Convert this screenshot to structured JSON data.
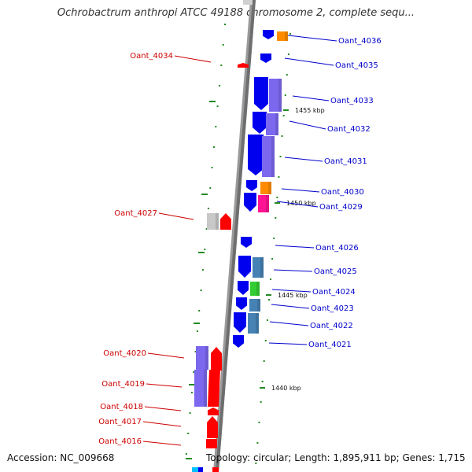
{
  "title": "Ochrobactrum anthropi ATCC 49188 chromosome 2, complete sequ...",
  "footer": {
    "accession": "Accession: NC_009668",
    "topology": "Topology: circular; Length: 1,895,911 bp; Genes: 1,715"
  },
  "colors": {
    "backbone": "#9a9a9a",
    "forward_label": "#0000cc",
    "reverse_label": "#cc0000",
    "tick": "#228b22",
    "blue": "#0000ee",
    "purple": "#7b68ee",
    "orange": "#ff8c00",
    "pink": "#ff1493",
    "red": "#ff0000",
    "grey": "#c8c8c8",
    "steel": "#4682b4",
    "green": "#32cd32"
  },
  "tick_labels": [
    "1455 kbp",
    "1450 kbp",
    "1445 kbp",
    "1440 kbp"
  ],
  "forward_genes": [
    "Oant_4036",
    "Oant_4035",
    "Oant_4033",
    "Oant_4032",
    "Oant_4031",
    "Oant_4030",
    "Oant_4029",
    "Oant_4026",
    "Oant_4025",
    "Oant_4024",
    "Oant_4023",
    "Oant_4022",
    "Oant_4021"
  ],
  "reverse_genes": [
    "Oant_4034",
    "Oant_4027",
    "Oant_4020",
    "Oant_4019",
    "Oant_4018",
    "Oant_4017",
    "Oant_4016"
  ]
}
